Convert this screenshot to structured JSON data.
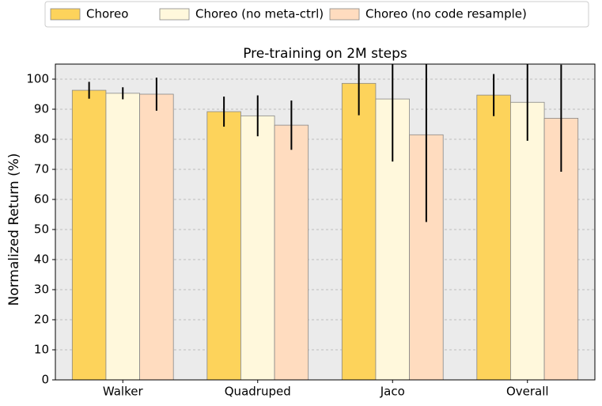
{
  "chart_data": {
    "type": "bar",
    "title": "Pre-training on 2M steps",
    "y_label": "Normalized Return (%)",
    "categories": [
      "Walker",
      "Quadruped",
      "Jaco",
      "Overall"
    ],
    "series": [
      {
        "name": "Choreo",
        "color": "#fdd35b",
        "values": [
          96.3,
          89.2,
          98.6,
          94.7
        ],
        "errors": [
          2.8,
          5,
          10.6,
          7
        ]
      },
      {
        "name": "Choreo (no meta-ctrl)",
        "color": "#fff8dc",
        "values": [
          95.3,
          87.8,
          93.4,
          92.3
        ],
        "errors": [
          2,
          6.8,
          20.8,
          12.8
        ]
      },
      {
        "name": "Choreo (no code resample)",
        "color": "#ffdcbf",
        "values": [
          95,
          84.7,
          81.5,
          87
        ],
        "errors": [
          5.5,
          8.2,
          29,
          17.8
        ]
      }
    ],
    "ylim": [
      0,
      105
    ],
    "yticks": [
      0,
      10,
      20,
      30,
      40,
      50,
      60,
      70,
      80,
      90,
      100
    ],
    "grid": true
  }
}
